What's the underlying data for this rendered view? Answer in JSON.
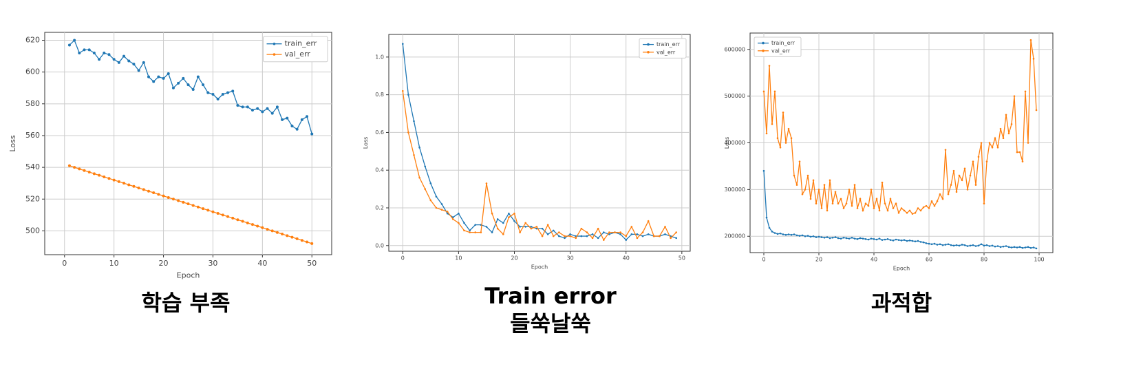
{
  "chart_data": [
    {
      "type": "line",
      "xlabel": "Epoch",
      "ylabel": "Loss",
      "caption": [
        "학습 부족"
      ],
      "legend": "upper right",
      "grid": true,
      "x": [
        1,
        2,
        3,
        4,
        5,
        6,
        7,
        8,
        9,
        10,
        11,
        12,
        13,
        14,
        15,
        16,
        17,
        18,
        19,
        20,
        21,
        22,
        23,
        24,
        25,
        26,
        27,
        28,
        29,
        30,
        31,
        32,
        33,
        34,
        35,
        36,
        37,
        38,
        39,
        40,
        41,
        42,
        43,
        44,
        45,
        46,
        47,
        48,
        49,
        50
      ],
      "series": [
        {
          "name": "train_err",
          "color": "#1f77b4",
          "values": [
            617,
            620,
            612,
            614,
            614,
            612,
            608,
            612,
            611,
            608,
            606,
            610,
            607,
            605,
            601,
            606,
            597,
            594,
            597,
            596,
            599,
            590,
            593,
            596,
            592,
            589,
            597,
            592,
            587,
            586,
            583,
            586,
            587,
            588,
            579,
            578,
            578,
            576,
            577,
            575,
            577,
            574,
            578,
            570,
            571,
            566,
            564,
            570,
            572,
            561
          ]
        },
        {
          "name": "val_err",
          "color": "#ff7f0e",
          "values": [
            541,
            540,
            539,
            538,
            537,
            536,
            535,
            534,
            533,
            532,
            531,
            530,
            529,
            528,
            527,
            526,
            525,
            524,
            523,
            522,
            521,
            520,
            519,
            518,
            517,
            516,
            515,
            514,
            513,
            512,
            511,
            510,
            509,
            508,
            507,
            506,
            505,
            504,
            503,
            502,
            501,
            500,
            499,
            498,
            497,
            496,
            495,
            494,
            493,
            492
          ]
        }
      ],
      "xlim": [
        -4,
        54
      ],
      "xticks": [
        0,
        10,
        20,
        30,
        40,
        50
      ],
      "ylim": [
        485,
        625
      ],
      "yticks": [
        500,
        520,
        540,
        560,
        580,
        600,
        620
      ]
    },
    {
      "type": "line",
      "xlabel": "Epoch",
      "ylabel": "Loss",
      "caption": [
        "Train error",
        "들쑥날쑥"
      ],
      "legend": "upper right",
      "grid": true,
      "x": [
        0,
        1,
        2,
        3,
        4,
        5,
        6,
        7,
        8,
        9,
        10,
        11,
        12,
        13,
        14,
        15,
        16,
        17,
        18,
        19,
        20,
        21,
        22,
        23,
        24,
        25,
        26,
        27,
        28,
        29,
        30,
        31,
        32,
        33,
        34,
        35,
        36,
        37,
        38,
        39,
        40,
        41,
        42,
        43,
        44,
        45,
        46,
        47,
        48,
        49
      ],
      "series": [
        {
          "name": "train_err",
          "color": "#1f77b4",
          "values": [
            1.07,
            0.8,
            0.66,
            0.52,
            0.42,
            0.33,
            0.26,
            0.22,
            0.17,
            0.15,
            0.17,
            0.12,
            0.08,
            0.11,
            0.11,
            0.1,
            0.07,
            0.14,
            0.12,
            0.17,
            0.13,
            0.1,
            0.1,
            0.1,
            0.09,
            0.09,
            0.06,
            0.08,
            0.05,
            0.04,
            0.06,
            0.05,
            0.05,
            0.05,
            0.06,
            0.04,
            0.07,
            0.06,
            0.07,
            0.06,
            0.03,
            0.06,
            0.06,
            0.05,
            0.06,
            0.05,
            0.05,
            0.06,
            0.05,
            0.04
          ]
        },
        {
          "name": "val_err",
          "color": "#ff7f0e",
          "values": [
            0.82,
            0.6,
            0.48,
            0.36,
            0.3,
            0.24,
            0.2,
            0.19,
            0.18,
            0.14,
            0.12,
            0.08,
            0.07,
            0.07,
            0.07,
            0.33,
            0.17,
            0.09,
            0.06,
            0.15,
            0.17,
            0.07,
            0.12,
            0.09,
            0.1,
            0.05,
            0.11,
            0.05,
            0.07,
            0.05,
            0.05,
            0.04,
            0.09,
            0.07,
            0.04,
            0.09,
            0.03,
            0.07,
            0.07,
            0.07,
            0.05,
            0.1,
            0.04,
            0.07,
            0.13,
            0.05,
            0.05,
            0.1,
            0.04,
            0.07
          ]
        }
      ],
      "xlim": [
        -2.5,
        51.5
      ],
      "xticks": [
        0,
        10,
        20,
        30,
        40,
        50
      ],
      "ylim": [
        -0.03,
        1.12
      ],
      "yticks": [
        {
          "value": 0,
          "label": "0.0"
        },
        0.2,
        0.4,
        0.6,
        0.8,
        {
          "value": 1,
          "label": "1.0"
        }
      ]
    },
    {
      "type": "line",
      "xlabel": "Epoch",
      "ylabel": "Loss",
      "caption": [
        "과적합"
      ],
      "legend": "upper left",
      "grid": true,
      "x": [
        0,
        1,
        2,
        3,
        4,
        5,
        6,
        7,
        8,
        9,
        10,
        11,
        12,
        13,
        14,
        15,
        16,
        17,
        18,
        19,
        20,
        21,
        22,
        23,
        24,
        25,
        26,
        27,
        28,
        29,
        30,
        31,
        32,
        33,
        34,
        35,
        36,
        37,
        38,
        39,
        40,
        41,
        42,
        43,
        44,
        45,
        46,
        47,
        48,
        49,
        50,
        51,
        52,
        53,
        54,
        55,
        56,
        57,
        58,
        59,
        60,
        61,
        62,
        63,
        64,
        65,
        66,
        67,
        68,
        69,
        70,
        71,
        72,
        73,
        74,
        75,
        76,
        77,
        78,
        79,
        80,
        81,
        82,
        83,
        84,
        85,
        86,
        87,
        88,
        89,
        90,
        91,
        92,
        93,
        94,
        95,
        96,
        97,
        98,
        99
      ],
      "series": [
        {
          "name": "train_err",
          "color": "#1f77b4",
          "values": [
            340000,
            240000,
            218000,
            210000,
            207000,
            205000,
            206000,
            204000,
            203000,
            204000,
            203000,
            204000,
            202000,
            201000,
            202000,
            200000,
            201000,
            199000,
            200000,
            198000,
            199000,
            198000,
            197000,
            198000,
            196000,
            197000,
            198000,
            196000,
            195000,
            197000,
            196000,
            195000,
            197000,
            195000,
            194000,
            196000,
            195000,
            194000,
            193000,
            195000,
            194000,
            193000,
            195000,
            192000,
            193000,
            194000,
            192000,
            191000,
            193000,
            192000,
            191000,
            192000,
            190000,
            191000,
            190000,
            189000,
            190000,
            188000,
            187000,
            185000,
            184000,
            183000,
            184000,
            182000,
            183000,
            181000,
            182000,
            183000,
            181000,
            180000,
            181000,
            180000,
            182000,
            181000,
            179000,
            180000,
            181000,
            179000,
            180000,
            183000,
            180000,
            181000,
            179000,
            180000,
            178000,
            179000,
            177000,
            178000,
            179000,
            177000,
            176000,
            177000,
            176000,
            177000,
            175000,
            176000,
            177000,
            175000,
            176000,
            174000
          ]
        },
        {
          "name": "val_err",
          "color": "#ff7f0e",
          "values": [
            510000,
            420000,
            565000,
            440000,
            510000,
            410000,
            390000,
            465000,
            400000,
            430000,
            410000,
            330000,
            310000,
            360000,
            290000,
            300000,
            330000,
            280000,
            320000,
            270000,
            300000,
            260000,
            310000,
            255000,
            320000,
            270000,
            295000,
            270000,
            280000,
            260000,
            270000,
            300000,
            265000,
            310000,
            260000,
            280000,
            255000,
            270000,
            265000,
            300000,
            260000,
            280000,
            255000,
            315000,
            270000,
            255000,
            280000,
            260000,
            270000,
            250000,
            260000,
            255000,
            250000,
            255000,
            248000,
            250000,
            260000,
            255000,
            262000,
            265000,
            260000,
            275000,
            265000,
            275000,
            290000,
            280000,
            385000,
            290000,
            310000,
            340000,
            295000,
            330000,
            320000,
            345000,
            300000,
            330000,
            360000,
            310000,
            370000,
            400000,
            270000,
            360000,
            400000,
            390000,
            410000,
            390000,
            430000,
            410000,
            460000,
            420000,
            440000,
            500000,
            380000,
            380000,
            360000,
            510000,
            400000,
            620000,
            580000,
            470000
          ]
        }
      ],
      "xlim": [
        -5,
        105
      ],
      "xticks": [
        0,
        20,
        40,
        60,
        80,
        100
      ],
      "ylim": [
        165000,
        635000
      ],
      "yticks": [
        200000,
        300000,
        400000,
        500000,
        600000
      ]
    }
  ]
}
